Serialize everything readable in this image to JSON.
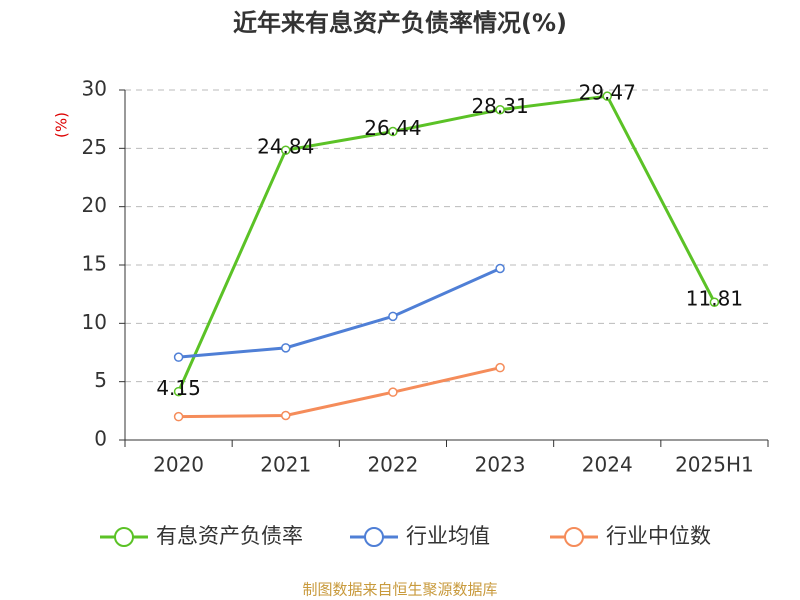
{
  "chart_data": {
    "type": "line",
    "title": "近年来有息资产负债率情况(%)",
    "y_label": "(%)",
    "categories": [
      "2020",
      "2021",
      "2022",
      "2023",
      "2024",
      "2025H1"
    ],
    "series": [
      {
        "name": "有息资产负债率",
        "color": "#5bc226",
        "values": [
          4.15,
          24.84,
          26.44,
          28.31,
          29.47,
          11.81
        ],
        "show_labels": true
      },
      {
        "name": "行业均值",
        "color": "#4f7fd6",
        "values": [
          7.1,
          7.9,
          10.6,
          14.7,
          null,
          null
        ],
        "show_labels": false
      },
      {
        "name": "行业中位数",
        "color": "#f58c5a",
        "values": [
          2.0,
          2.1,
          4.1,
          6.2,
          null,
          null
        ],
        "show_labels": false
      }
    ],
    "ylim": [
      0,
      30
    ],
    "yticks": [
      0,
      5,
      10,
      15,
      20,
      25,
      30
    ],
    "grid": true,
    "source": "制图数据来自恒生聚源数据库"
  }
}
